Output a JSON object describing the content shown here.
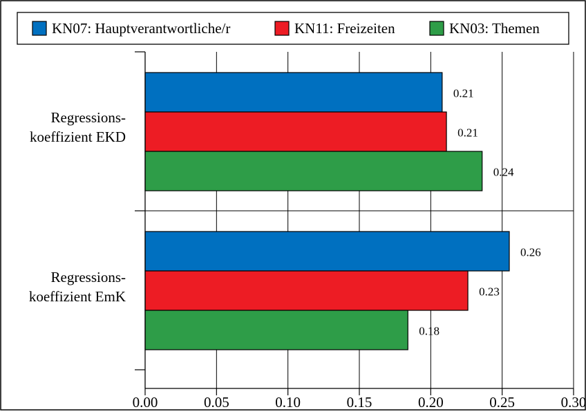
{
  "chart_data": {
    "type": "bar",
    "orientation": "horizontal",
    "categories": [
      "Regressions-\nkoeffizient EKD",
      "Regressions-\nkoeffizient EmK"
    ],
    "series": [
      {
        "name": "KN07: Hauptverantwortliche/r",
        "color": "#0070c0",
        "values": [
          0.208,
          0.255
        ],
        "labels": [
          "0.21",
          "0.26"
        ]
      },
      {
        "name": "KN11: Freizeiten",
        "color": "#ed1c24",
        "values": [
          0.211,
          0.226
        ],
        "labels": [
          "0.21",
          "0.23"
        ]
      },
      {
        "name": "KN03: Themen",
        "color": "#2e9d48",
        "values": [
          0.236,
          0.184
        ],
        "labels": [
          "0.24",
          "0.18"
        ]
      }
    ],
    "xlim": [
      0,
      0.3
    ],
    "xticks": [
      "0.00",
      "0.05",
      "0.10",
      "0.15",
      "0.20",
      "0.25",
      "0.30"
    ],
    "grid": true,
    "legend_position": "top"
  }
}
